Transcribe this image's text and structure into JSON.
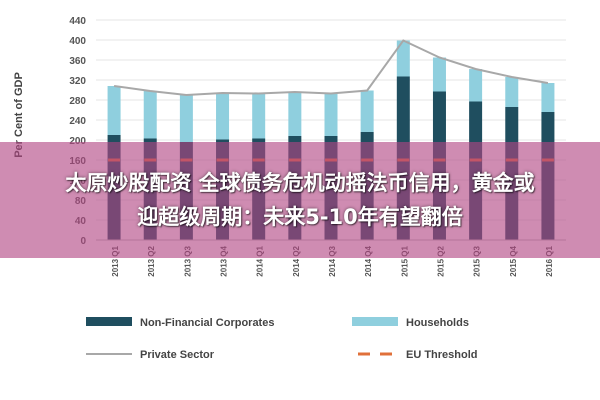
{
  "chart_data": {
    "type": "bar",
    "ylabel": "Per Cent of GDP",
    "ylim": [
      0,
      440
    ],
    "yticks": [
      0,
      40,
      80,
      120,
      160,
      200,
      240,
      280,
      320,
      360,
      400,
      440
    ],
    "grid": true,
    "legend_position": "bottom",
    "categories": [
      "2013 Q1",
      "2013 Q2",
      "2013 Q3",
      "2013 Q4",
      "2014 Q1",
      "2014 Q2",
      "2014 Q3",
      "2014 Q4",
      "2015 Q1",
      "2015 Q2",
      "2015 Q3",
      "2015 Q4",
      "2016 Q1"
    ],
    "series": [
      {
        "name": "Non-Financial Corporates",
        "kind": "stacked-bar",
        "color": "#1f4e5f",
        "values": [
          210,
          203,
          196,
          201,
          203,
          208,
          208,
          216,
          327,
          297,
          277,
          266,
          256
        ]
      },
      {
        "name": "Households",
        "kind": "stacked-bar",
        "color": "#8fcfde",
        "values": [
          98,
          95,
          94,
          93,
          90,
          88,
          85,
          83,
          72,
          68,
          65,
          60,
          58
        ]
      },
      {
        "name": "Private Sector",
        "kind": "line",
        "color": "#a8a8a8",
        "values": [
          308,
          298,
          290,
          294,
          293,
          296,
          293,
          299,
          399,
          365,
          342,
          326,
          314
        ]
      },
      {
        "name": "EU Threshold",
        "kind": "dashed-line",
        "color": "#e0703a",
        "values": [
          160,
          160,
          160,
          160,
          160,
          160,
          160,
          160,
          160,
          160,
          160,
          160,
          160
        ]
      }
    ]
  },
  "overlay": {
    "line1": "太原炒股配资 全球债务危机动摇法币信用，黄金或",
    "line2": "迎超级周期：未来5-10年有望翻倍",
    "color": "#b24682"
  }
}
